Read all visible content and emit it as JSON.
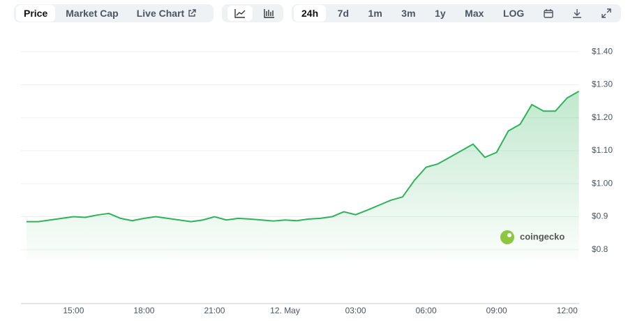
{
  "toolbar": {
    "views": [
      "Price",
      "Market Cap",
      "Live Chart"
    ],
    "ranges": [
      "24h",
      "7d",
      "1m",
      "3m",
      "1y",
      "Max",
      "LOG"
    ]
  },
  "watermark": "coingecko",
  "chart_data": {
    "type": "line",
    "color": "#2fb35a",
    "grid": true,
    "categories": [
      null,
      null,
      null,
      null,
      "15:00",
      null,
      null,
      null,
      null,
      null,
      "18:00",
      null,
      null,
      null,
      null,
      null,
      "21:00",
      null,
      null,
      null,
      null,
      null,
      "12. May",
      null,
      null,
      null,
      null,
      null,
      "03:00",
      null,
      null,
      null,
      null,
      null,
      "06:00",
      null,
      null,
      null,
      null,
      null,
      "09:00",
      null,
      null,
      null,
      null,
      null,
      "12:00",
      null
    ],
    "values": [
      0.885,
      0.885,
      0.89,
      0.895,
      0.9,
      0.898,
      0.905,
      0.91,
      0.895,
      0.888,
      0.895,
      0.9,
      0.895,
      0.89,
      0.885,
      0.89,
      0.9,
      0.89,
      0.895,
      0.893,
      0.89,
      0.887,
      0.89,
      0.888,
      0.893,
      0.895,
      0.9,
      0.915,
      0.906,
      0.92,
      0.935,
      0.95,
      0.96,
      1.01,
      1.05,
      1.06,
      1.08,
      1.1,
      1.12,
      1.08,
      1.095,
      1.16,
      1.18,
      1.24,
      1.22,
      1.22,
      1.26,
      1.28
    ],
    "ylim": [
      0.77,
      1.43
    ],
    "yticks": [
      {
        "value": 0.8,
        "label": "$0.8"
      },
      {
        "value": 0.9,
        "label": "$0.9"
      },
      {
        "value": 1.0,
        "label": "$1.00"
      },
      {
        "value": 1.1,
        "label": "$1.10"
      },
      {
        "value": 1.2,
        "label": "$1.20"
      },
      {
        "value": 1.3,
        "label": "$1.30"
      },
      {
        "value": 1.4,
        "label": "$1.40"
      }
    ]
  }
}
